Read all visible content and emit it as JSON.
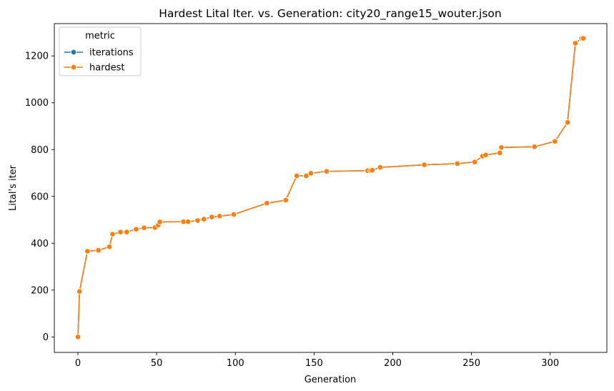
{
  "chart_data": {
    "type": "line",
    "title": "Hardest Lital Iter. vs. Generation: city20_range15_wouter.json",
    "xlabel": "Generation",
    "ylabel": "Lital's iter",
    "xlim": [
      -15,
      336
    ],
    "ylim": [
      -66,
      1338
    ],
    "xticks": [
      0,
      50,
      100,
      150,
      200,
      250,
      300
    ],
    "yticks": [
      0,
      200,
      400,
      600,
      800,
      1000,
      1200
    ],
    "grid": false,
    "legend": {
      "title": "metric",
      "placement": "top-left"
    },
    "series": [
      {
        "name": "iterations",
        "color": "#1f77b4",
        "marker": "circle",
        "x": [
          0,
          1,
          6,
          13,
          20,
          22,
          27,
          31,
          37,
          42,
          49,
          51,
          52,
          67,
          70,
          76,
          80,
          85,
          90,
          99,
          120,
          132,
          139,
          145,
          148,
          158,
          184,
          186,
          187,
          192,
          220,
          241,
          252,
          257,
          259,
          268,
          269,
          290,
          303,
          311,
          316,
          320,
          321
        ],
        "y": [
          0,
          194,
          366,
          370,
          385,
          439,
          448,
          448,
          460,
          466,
          467,
          477,
          491,
          492,
          492,
          497,
          503,
          512,
          516,
          523,
          571,
          584,
          688,
          688,
          699,
          707,
          710,
          710,
          712,
          724,
          735,
          740,
          747,
          772,
          777,
          786,
          809,
          812,
          835,
          916,
          1254,
          1275,
          1275
        ]
      },
      {
        "name": "hardest",
        "color": "#ff7f0e",
        "marker": "circle",
        "x": [
          0,
          1,
          6,
          13,
          20,
          22,
          27,
          31,
          37,
          42,
          49,
          51,
          52,
          67,
          70,
          76,
          80,
          85,
          90,
          99,
          120,
          132,
          139,
          145,
          148,
          158,
          184,
          186,
          187,
          192,
          220,
          241,
          252,
          257,
          259,
          268,
          269,
          290,
          303,
          311,
          316,
          320,
          321
        ],
        "y": [
          0,
          194,
          366,
          370,
          385,
          439,
          448,
          448,
          460,
          466,
          467,
          477,
          491,
          492,
          492,
          497,
          503,
          512,
          516,
          523,
          571,
          584,
          688,
          688,
          699,
          707,
          710,
          710,
          712,
          724,
          735,
          740,
          747,
          772,
          777,
          786,
          809,
          812,
          835,
          916,
          1254,
          1275,
          1275
        ]
      }
    ]
  }
}
